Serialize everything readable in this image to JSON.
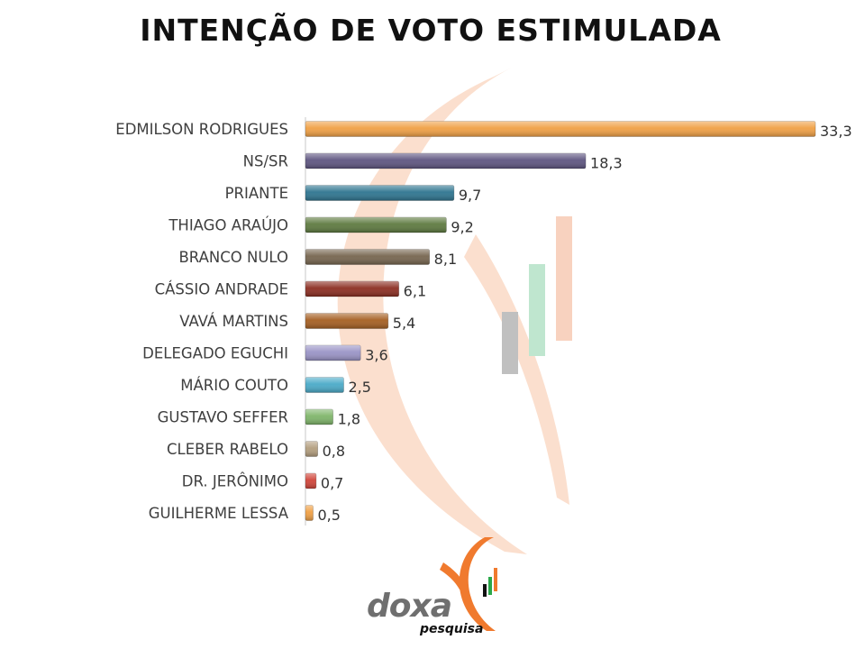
{
  "title": "INTENÇÃO DE VOTO ESTIMULADA",
  "chart_data": {
    "type": "bar",
    "orientation": "horizontal",
    "title": "INTENÇÃO DE VOTO ESTIMULADA",
    "categories": [
      "EDMILSON RODRIGUES",
      "NS/SR",
      "PRIANTE",
      "THIAGO ARAÚJO",
      "BRANCO NULO",
      "CÁSSIO ANDRADE",
      "VAVÁ MARTINS",
      "DELEGADO EGUCHI",
      "MÁRIO COUTO",
      "GUSTAVO SEFFER",
      "CLEBER RABELO",
      "DR. JERÔNIMO",
      "GUILHERME LESSA"
    ],
    "values": [
      33.3,
      18.3,
      9.7,
      9.2,
      8.1,
      6.1,
      5.4,
      3.6,
      2.5,
      1.8,
      0.8,
      0.7,
      0.5
    ],
    "value_labels": [
      "33,3",
      "18,3",
      "9,7",
      "9,2",
      "8,1",
      "6,1",
      "5,4",
      "3,6",
      "2,5",
      "1,8",
      "0,8",
      "0,7",
      "0,5"
    ],
    "colors": [
      "#F0A045",
      "#5E5580",
      "#2E7590",
      "#5E7A40",
      "#76654F",
      "#8C2E22",
      "#A55F22",
      "#9A94C6",
      "#4AAAC8",
      "#7FB56A",
      "#B39E7E",
      "#D0453A",
      "#F0A045"
    ],
    "xlim": [
      0,
      33.3
    ],
    "grid": false,
    "legend": "none"
  },
  "logo": {
    "text": "doxa",
    "subtext": "pesquisa"
  }
}
